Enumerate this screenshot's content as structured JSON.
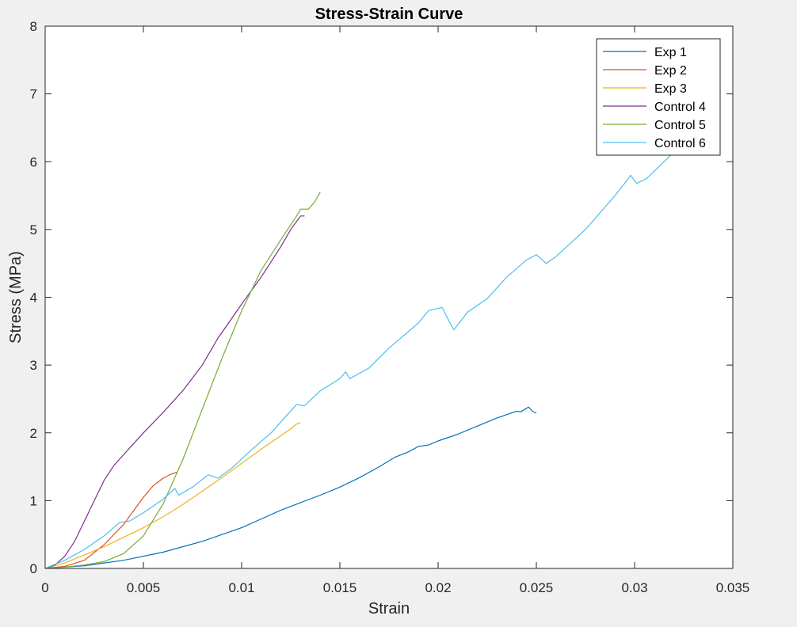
{
  "colors": {
    "figure_background": "#f0f0f0",
    "axes_background": "#ffffff",
    "axis_color": "#262626"
  },
  "chart_data": {
    "type": "line",
    "title": "Stress-Strain Curve",
    "xlabel": "Strain",
    "ylabel": "Stress (MPa)",
    "xlim": [
      0,
      0.035
    ],
    "ylim": [
      0,
      8
    ],
    "xticks": [
      0,
      0.005,
      0.01,
      0.015,
      0.02,
      0.025,
      0.03,
      0.035
    ],
    "xtick_labels": [
      "0",
      "0.005",
      "0.01",
      "0.015",
      "0.02",
      "0.025",
      "0.03",
      "0.035"
    ],
    "yticks": [
      0,
      1,
      2,
      3,
      4,
      5,
      6,
      7,
      8
    ],
    "ytick_labels": [
      "0",
      "1",
      "2",
      "3",
      "4",
      "5",
      "6",
      "7",
      "8"
    ],
    "grid": false,
    "legend_position": "top-right",
    "series": [
      {
        "name": "Exp 1",
        "color": "#0072BD",
        "points": [
          [
            0,
            0
          ],
          [
            0.002,
            0.04
          ],
          [
            0.004,
            0.12
          ],
          [
            0.006,
            0.24
          ],
          [
            0.008,
            0.4
          ],
          [
            0.009,
            0.5
          ],
          [
            0.01,
            0.6
          ],
          [
            0.011,
            0.73
          ],
          [
            0.012,
            0.86
          ],
          [
            0.013,
            0.97
          ],
          [
            0.014,
            1.08
          ],
          [
            0.015,
            1.2
          ],
          [
            0.016,
            1.34
          ],
          [
            0.017,
            1.5
          ],
          [
            0.0178,
            1.64
          ],
          [
            0.0185,
            1.72
          ],
          [
            0.019,
            1.8
          ],
          [
            0.0195,
            1.82
          ],
          [
            0.02,
            1.88
          ],
          [
            0.021,
            1.98
          ],
          [
            0.022,
            2.1
          ],
          [
            0.023,
            2.22
          ],
          [
            0.024,
            2.32
          ],
          [
            0.0242,
            2.31
          ],
          [
            0.0246,
            2.38
          ],
          [
            0.0248,
            2.32
          ],
          [
            0.025,
            2.29
          ]
        ]
      },
      {
        "name": "Exp 2",
        "color": "#D95319",
        "points": [
          [
            0,
            0
          ],
          [
            0.001,
            0.03
          ],
          [
            0.002,
            0.12
          ],
          [
            0.003,
            0.35
          ],
          [
            0.004,
            0.65
          ],
          [
            0.005,
            1.05
          ],
          [
            0.0055,
            1.22
          ],
          [
            0.006,
            1.33
          ],
          [
            0.0064,
            1.39
          ],
          [
            0.0067,
            1.42
          ]
        ]
      },
      {
        "name": "Exp 3",
        "color": "#EDB120",
        "points": [
          [
            0,
            0
          ],
          [
            0.001,
            0.08
          ],
          [
            0.002,
            0.2
          ],
          [
            0.003,
            0.32
          ],
          [
            0.004,
            0.46
          ],
          [
            0.005,
            0.6
          ],
          [
            0.006,
            0.76
          ],
          [
            0.007,
            0.94
          ],
          [
            0.008,
            1.14
          ],
          [
            0.009,
            1.34
          ],
          [
            0.01,
            1.55
          ],
          [
            0.011,
            1.76
          ],
          [
            0.012,
            1.96
          ],
          [
            0.0125,
            2.06
          ],
          [
            0.0128,
            2.13
          ],
          [
            0.013,
            2.15
          ]
        ]
      },
      {
        "name": "Control 4",
        "color": "#7E2F8E",
        "points": [
          [
            0,
            0
          ],
          [
            0.0005,
            0.05
          ],
          [
            0.001,
            0.18
          ],
          [
            0.0015,
            0.4
          ],
          [
            0.002,
            0.7
          ],
          [
            0.0025,
            1.0
          ],
          [
            0.003,
            1.3
          ],
          [
            0.0035,
            1.52
          ],
          [
            0.004,
            1.68
          ],
          [
            0.005,
            2.0
          ],
          [
            0.006,
            2.3
          ],
          [
            0.007,
            2.62
          ],
          [
            0.008,
            3.0
          ],
          [
            0.0088,
            3.4
          ],
          [
            0.009,
            3.48
          ],
          [
            0.01,
            3.9
          ],
          [
            0.011,
            4.3
          ],
          [
            0.012,
            4.75
          ],
          [
            0.0125,
            5.0
          ],
          [
            0.013,
            5.2
          ],
          [
            0.0132,
            5.2
          ]
        ]
      },
      {
        "name": "Control 5",
        "color": "#77AC30",
        "points": [
          [
            0,
            0
          ],
          [
            0.001,
            0.02
          ],
          [
            0.002,
            0.05
          ],
          [
            0.003,
            0.1
          ],
          [
            0.004,
            0.22
          ],
          [
            0.005,
            0.48
          ],
          [
            0.006,
            0.95
          ],
          [
            0.007,
            1.6
          ],
          [
            0.008,
            2.35
          ],
          [
            0.009,
            3.1
          ],
          [
            0.01,
            3.8
          ],
          [
            0.0105,
            4.1
          ],
          [
            0.011,
            4.4
          ],
          [
            0.012,
            4.85
          ],
          [
            0.0128,
            5.2
          ],
          [
            0.013,
            5.3
          ],
          [
            0.0134,
            5.3
          ],
          [
            0.0137,
            5.4
          ],
          [
            0.014,
            5.55
          ]
        ]
      },
      {
        "name": "Control 6",
        "color": "#4DBEEE",
        "points": [
          [
            0,
            0
          ],
          [
            0.001,
            0.12
          ],
          [
            0.002,
            0.28
          ],
          [
            0.003,
            0.48
          ],
          [
            0.0038,
            0.68
          ],
          [
            0.0043,
            0.7
          ],
          [
            0.005,
            0.82
          ],
          [
            0.006,
            1.02
          ],
          [
            0.0066,
            1.18
          ],
          [
            0.0068,
            1.08
          ],
          [
            0.0075,
            1.2
          ],
          [
            0.0083,
            1.38
          ],
          [
            0.0088,
            1.33
          ],
          [
            0.0095,
            1.48
          ],
          [
            0.0105,
            1.75
          ],
          [
            0.0115,
            2.0
          ],
          [
            0.0128,
            2.42
          ],
          [
            0.0132,
            2.4
          ],
          [
            0.014,
            2.62
          ],
          [
            0.015,
            2.8
          ],
          [
            0.0153,
            2.9
          ],
          [
            0.0155,
            2.8
          ],
          [
            0.0165,
            2.96
          ],
          [
            0.0175,
            3.25
          ],
          [
            0.019,
            3.62
          ],
          [
            0.0195,
            3.8
          ],
          [
            0.0202,
            3.85
          ],
          [
            0.0205,
            3.68
          ],
          [
            0.0208,
            3.52
          ],
          [
            0.0215,
            3.78
          ],
          [
            0.0225,
            3.98
          ],
          [
            0.0235,
            4.3
          ],
          [
            0.0245,
            4.55
          ],
          [
            0.025,
            4.63
          ],
          [
            0.0255,
            4.5
          ],
          [
            0.026,
            4.6
          ],
          [
            0.0275,
            5.0
          ],
          [
            0.029,
            5.5
          ],
          [
            0.0296,
            5.72
          ],
          [
            0.0298,
            5.8
          ],
          [
            0.0301,
            5.68
          ],
          [
            0.0306,
            5.75
          ],
          [
            0.0315,
            6.0
          ],
          [
            0.0322,
            6.2
          ],
          [
            0.0326,
            6.28
          ]
        ]
      }
    ]
  }
}
